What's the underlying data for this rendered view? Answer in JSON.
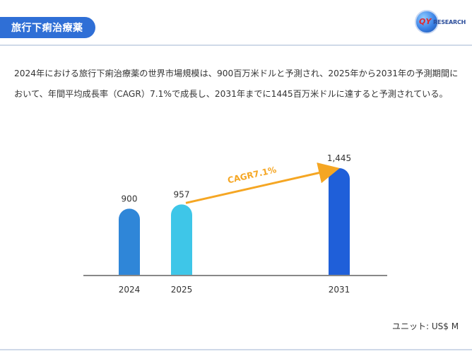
{
  "header": {
    "title": "旅行下痢治療薬",
    "brand": "QYRESEARCH",
    "brand_prefix": "QY",
    "brand_suffix": "RESEARCH"
  },
  "description": "2024年における旅行下痢治療薬の世界市場規模は、900百万米ドルと予測され、2025年から2031年の予測期間において、年間平均成長率（CAGR）7.1%で成長し、2031年までに1445百万米ドルに達すると予測されている。",
  "unit_label": "ユニット: US$ M",
  "colors": {
    "header": "#2f6fd6",
    "bar_2024": "#2f86d8",
    "bar_2025": "#3ec6e8",
    "bar_2031": "#1f5fd9",
    "arrow": "#f5a623",
    "axis": "#888888"
  },
  "chart_data": {
    "type": "bar",
    "categories": [
      "2024",
      "2025",
      "2031"
    ],
    "values": [
      900,
      957,
      1445
    ],
    "value_labels": [
      "900",
      "957",
      "1,445"
    ],
    "annotation": "CAGR7.1%",
    "ylim": [
      0,
      1445
    ],
    "grid": false
  }
}
